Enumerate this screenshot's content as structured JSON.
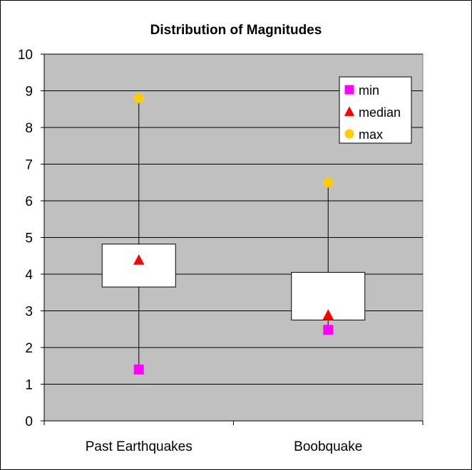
{
  "chart_data": {
    "type": "box",
    "title": "Distribution of Magnitudes",
    "xlabel": "",
    "ylabel": "",
    "ylim": [
      0,
      10
    ],
    "yticks": [
      "0",
      "1",
      "2",
      "3",
      "4",
      "5",
      "6",
      "7",
      "8",
      "9",
      "10"
    ],
    "categories": [
      "Past Earthquakes",
      "Boobquake"
    ],
    "boxes": [
      {
        "category": "Past Earthquakes",
        "q1": 3.65,
        "q3": 4.82
      },
      {
        "category": "Boobquake",
        "q1": 2.75,
        "q3": 4.05
      }
    ],
    "series": [
      {
        "name": "min",
        "values": [
          1.4,
          2.48
        ],
        "color": "#FF00FF",
        "marker": "square"
      },
      {
        "name": "median",
        "values": [
          4.38,
          2.88
        ],
        "color": "#FF0000",
        "marker": "triangle"
      },
      {
        "name": "max",
        "values": [
          8.8,
          6.5
        ],
        "color": "#FFCC00",
        "marker": "circle"
      }
    ],
    "grid": true,
    "legend": "top-right",
    "plot_bg": "#C0C0C0"
  }
}
